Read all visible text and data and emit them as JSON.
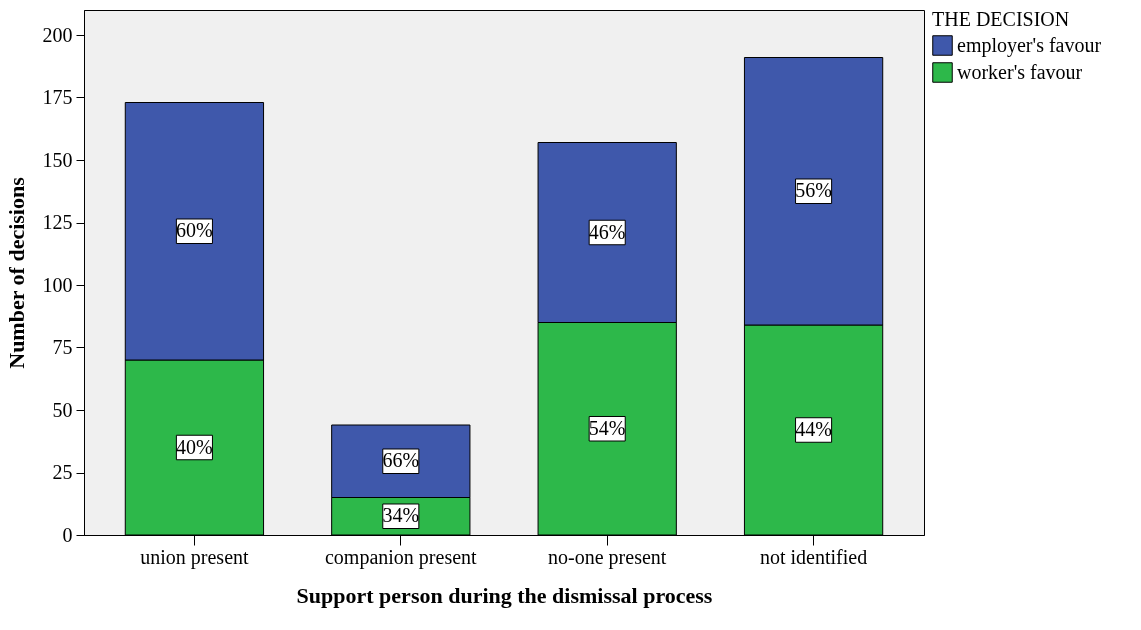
{
  "chart_data": {
    "type": "bar",
    "stacked": true,
    "xlabel": "Support person during the dismissal process",
    "ylabel": "Number of decisions",
    "legend_title": "THE DECISION",
    "legend": "top right",
    "categories": [
      "union present",
      "companion present",
      "no-one present",
      "not identified"
    ],
    "series": [
      {
        "name": "worker's favour",
        "color": "#2db84a",
        "values": [
          70,
          15,
          85,
          84
        ]
      },
      {
        "name": "employer's favour",
        "color": "#3f58ab",
        "values": [
          103,
          29,
          72,
          107
        ]
      }
    ],
    "annotations": [
      {
        "text": "40%",
        "x": "union present",
        "y": 35
      },
      {
        "text": "34%",
        "x": "companion present",
        "y": 7.5
      },
      {
        "text": "54%",
        "x": "no-one present",
        "y": 42.5
      },
      {
        "text": "44%",
        "x": "not identified",
        "y": 42
      },
      {
        "text": "60%",
        "x": "union present",
        "y": 121.5
      },
      {
        "text": "66%",
        "x": "companion present",
        "y": 29.5
      },
      {
        "text": "46%",
        "x": "no-one present",
        "y": 121
      },
      {
        "text": "56%",
        "x": "not identified",
        "y": 137.5
      }
    ],
    "ylim": [
      0,
      210
    ],
    "yticks": [
      0,
      25,
      50,
      75,
      100,
      125,
      150,
      175,
      200
    ]
  }
}
